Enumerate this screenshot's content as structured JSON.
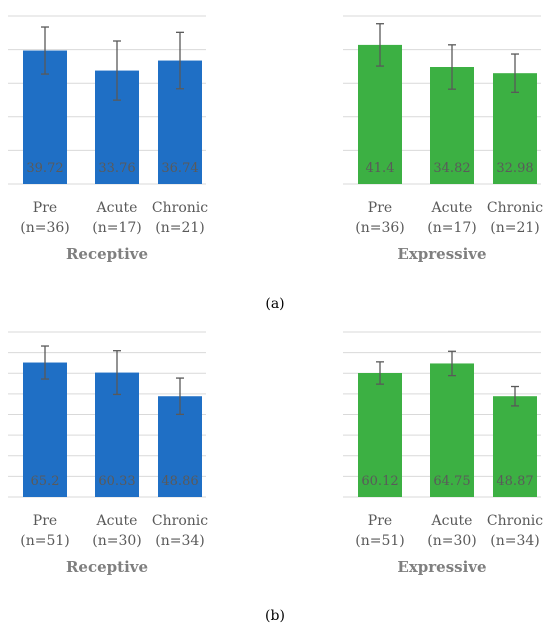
{
  "figure": {
    "label_a": "(a)",
    "label_b": "(b)"
  },
  "colors": {
    "receptive": "#1f6fc5",
    "expressive": "#3cb043",
    "grid": "#d9d9d9",
    "error_bar": "#595959"
  },
  "chart_data": [
    {
      "type": "bar",
      "title": "Receptive",
      "group": "(a)",
      "color": "receptive",
      "categories": [
        "Pre",
        "Acute",
        "Chronic"
      ],
      "category_counts": [
        "(n=36)",
        "(n=17)",
        "(n=21)"
      ],
      "values": [
        39.72,
        33.76,
        36.74
      ],
      "value_labels": [
        "39.72",
        "33.76",
        "36.74"
      ],
      "error": [
        7.0,
        8.8,
        8.4
      ],
      "ylim": [
        0,
        50
      ],
      "grid": true
    },
    {
      "type": "bar",
      "title": "Expressive",
      "group": "(a)",
      "color": "expressive",
      "categories": [
        "Pre",
        "Acute",
        "Chronic"
      ],
      "category_counts": [
        "(n=36)",
        "(n=17)",
        "(n=21)"
      ],
      "values": [
        41.4,
        34.82,
        32.98
      ],
      "value_labels": [
        "41.4",
        "34.82",
        "32.98"
      ],
      "error": [
        6.3,
        6.6,
        5.7
      ],
      "ylim": [
        0,
        50
      ],
      "grid": true
    },
    {
      "type": "bar",
      "title": "Receptive",
      "group": "(b)",
      "color": "receptive",
      "categories": [
        "Pre",
        "Acute",
        "Chronic"
      ],
      "category_counts": [
        "(n=51)",
        "(n=30)",
        "(n=34)"
      ],
      "values": [
        65.2,
        60.33,
        48.86
      ],
      "value_labels": [
        "65.2",
        "60.33",
        "48.86"
      ],
      "error": [
        8.0,
        10.6,
        8.8
      ],
      "ylim": [
        0,
        80
      ],
      "grid": true
    },
    {
      "type": "bar",
      "title": "Expressive",
      "group": "(b)",
      "color": "expressive",
      "categories": [
        "Pre",
        "Acute",
        "Chronic"
      ],
      "category_counts": [
        "(n=51)",
        "(n=30)",
        "(n=34)"
      ],
      "values": [
        60.12,
        64.75,
        48.87
      ],
      "value_labels": [
        "60.12",
        "64.75",
        "48.87"
      ],
      "error": [
        5.4,
        5.9,
        4.7
      ],
      "ylim": [
        0,
        80
      ],
      "grid": true
    }
  ]
}
